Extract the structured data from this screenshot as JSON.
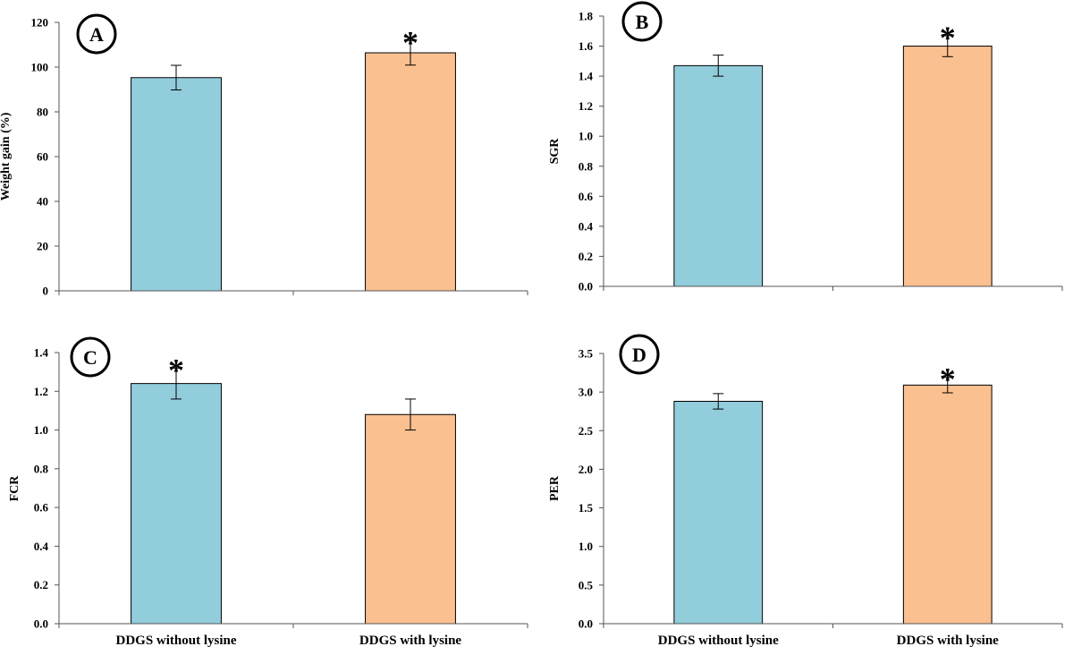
{
  "chart_data": [
    {
      "panel": "A",
      "type": "bar",
      "categories": [
        "DDGS without lysine",
        "DDGS with lysine"
      ],
      "show_categories": false,
      "values": [
        95.3,
        106.4
      ],
      "errors": [
        5.5,
        5.5
      ],
      "significant": [
        false,
        true
      ],
      "ylabel": "Weight gain (%)",
      "ylim": [
        0,
        120
      ],
      "yticks": [
        0,
        20,
        40,
        60,
        80,
        100,
        120
      ],
      "tick_labels": [
        "0",
        "20",
        "40",
        "60",
        "80",
        "100",
        "120"
      ],
      "colors": [
        "#92cddc",
        "#fac090"
      ],
      "grid": false
    },
    {
      "panel": "B",
      "type": "bar",
      "categories": [
        "DDGS without lysine",
        "DDGS with lysine"
      ],
      "show_categories": false,
      "values": [
        1.47,
        1.6
      ],
      "errors": [
        0.07,
        0.07
      ],
      "significant": [
        false,
        true
      ],
      "ylabel": "SGR",
      "ylim": [
        0,
        1.8
      ],
      "yticks": [
        0,
        0.2,
        0.4,
        0.6,
        0.8,
        1.0,
        1.2,
        1.4,
        1.6,
        1.8
      ],
      "tick_labels": [
        "0.0",
        "0.2",
        "0.4",
        "0.6",
        "0.8",
        "1.0",
        "1.2",
        "1.4",
        "1.6",
        "1.8"
      ],
      "colors": [
        "#92cddc",
        "#fac090"
      ],
      "grid": false
    },
    {
      "panel": "C",
      "type": "bar",
      "categories": [
        "DDGS without lysine",
        "DDGS with lysine"
      ],
      "show_categories": true,
      "values": [
        1.24,
        1.08
      ],
      "errors": [
        0.08,
        0.08
      ],
      "significant": [
        true,
        false
      ],
      "ylabel": "FCR",
      "ylim": [
        0,
        1.4
      ],
      "yticks": [
        0,
        0.2,
        0.4,
        0.6,
        0.8,
        1.0,
        1.2,
        1.4
      ],
      "tick_labels": [
        "0.0",
        "0.2",
        "0.4",
        "0.6",
        "0.8",
        "1.0",
        "1.2",
        "1.4"
      ],
      "colors": [
        "#92cddc",
        "#fac090"
      ],
      "grid": false
    },
    {
      "panel": "D",
      "type": "bar",
      "categories": [
        "DDGS without lysine",
        "DDGS with lysine"
      ],
      "show_categories": true,
      "values": [
        2.88,
        3.09
      ],
      "errors": [
        0.1,
        0.1
      ],
      "significant": [
        false,
        true
      ],
      "ylabel": "PER",
      "ylim": [
        0,
        3.5
      ],
      "yticks": [
        0,
        0.5,
        1.0,
        1.5,
        2.0,
        2.5,
        3.0,
        3.5
      ],
      "tick_labels": [
        "0.0",
        "0.5",
        "1.0",
        "1.5",
        "2.0",
        "2.5",
        "3.0",
        "3.5"
      ],
      "colors": [
        "#92cddc",
        "#fac090"
      ],
      "grid": false
    }
  ],
  "significance_marker": "*"
}
